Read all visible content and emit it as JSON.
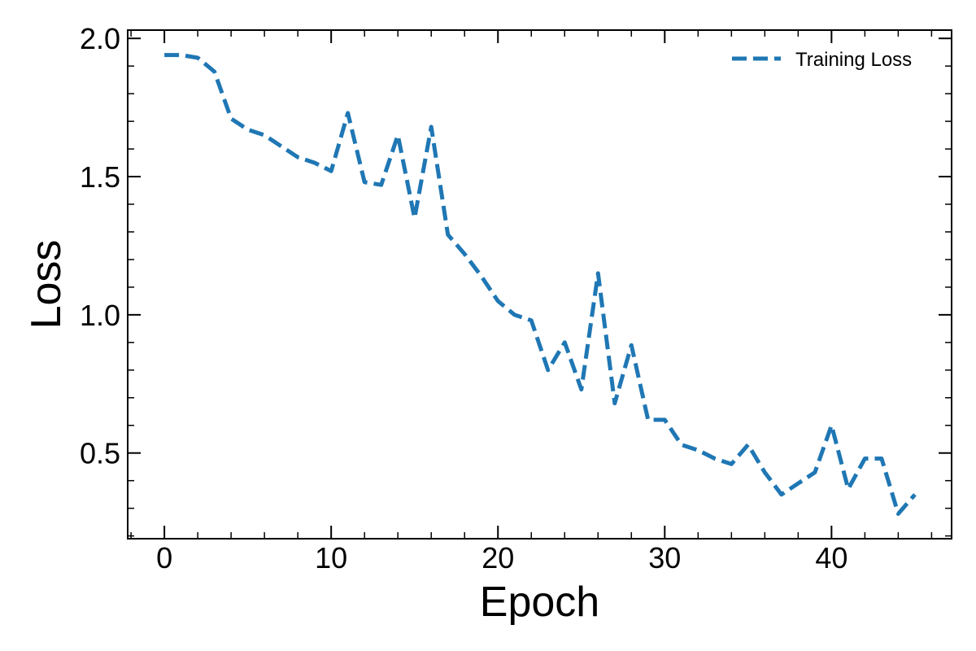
{
  "chart_data": {
    "type": "line",
    "xlabel": "Epoch",
    "ylabel": "Loss",
    "xlim": [
      -2.2,
      47.2
    ],
    "ylim": [
      0.19,
      2.03
    ],
    "x_ticks": [
      0,
      10,
      20,
      30,
      40
    ],
    "x_tick_labels": [
      "0",
      "10",
      "20",
      "30",
      "40"
    ],
    "y_ticks": [
      0.5,
      1.0,
      1.5,
      2.0
    ],
    "y_tick_labels": [
      "0.5",
      "1.0",
      "1.5",
      "2.0"
    ],
    "grid": false,
    "legend_position": "top-right",
    "series": [
      {
        "name": "Training Loss",
        "color": "#1f77b4",
        "line_style": "dashed",
        "x": [
          0,
          1,
          2,
          3,
          4,
          5,
          6,
          7,
          8,
          9,
          10,
          11,
          12,
          13,
          14,
          15,
          16,
          17,
          18,
          19,
          20,
          21,
          22,
          23,
          24,
          25,
          26,
          27,
          28,
          29,
          30,
          31,
          32,
          33,
          34,
          35,
          36,
          37,
          38,
          39,
          40,
          41,
          42,
          43,
          44,
          45
        ],
        "y": [
          1.94,
          1.94,
          1.93,
          1.88,
          1.71,
          1.67,
          1.65,
          1.61,
          1.57,
          1.55,
          1.52,
          1.73,
          1.48,
          1.47,
          1.65,
          1.35,
          1.68,
          1.29,
          1.22,
          1.14,
          1.05,
          1.0,
          0.98,
          0.8,
          0.9,
          0.73,
          1.15,
          0.68,
          0.89,
          0.62,
          0.62,
          0.53,
          0.51,
          0.48,
          0.46,
          0.53,
          0.43,
          0.35,
          0.39,
          0.43,
          0.6,
          0.37,
          0.48,
          0.48,
          0.28,
          0.35
        ]
      }
    ]
  }
}
